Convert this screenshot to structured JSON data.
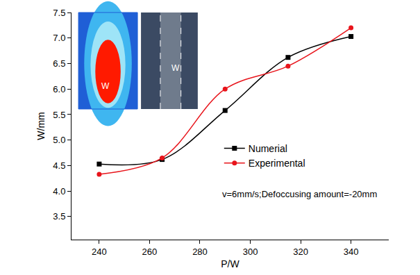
{
  "chart_data": {
    "type": "line",
    "x_label": "P/W",
    "y_label": "W/mm",
    "x": [
      240,
      265,
      290,
      315,
      340
    ],
    "series": [
      {
        "name": "Numerial",
        "color": "#000000",
        "marker": "square",
        "line_style": "spline",
        "values": [
          4.53,
          4.62,
          5.58,
          6.62,
          7.03
        ]
      },
      {
        "name": "Experimental",
        "color": "#e8141b",
        "marker": "circle",
        "line_style": "spline",
        "values": [
          4.33,
          4.65,
          6.0,
          6.45,
          7.2
        ]
      }
    ],
    "xlim": [
      229,
      355
    ],
    "xticks": [
      240,
      260,
      280,
      300,
      320,
      340
    ],
    "ylim": [
      3.05,
      7.5
    ],
    "yticks": [
      3.5,
      {
        "value": 4,
        "label": "4.0"
      },
      4.5,
      {
        "value": 5,
        "label": "5.0"
      },
      5.5,
      {
        "value": 6,
        "label": "6.0"
      },
      6.5,
      {
        "value": 7,
        "label": "7.0"
      },
      7.5
    ],
    "grid": false,
    "legend": "right",
    "annotations": [
      "v=6mm/s;Defoccusing amount=-20mm",
      "W",
      "W"
    ]
  }
}
